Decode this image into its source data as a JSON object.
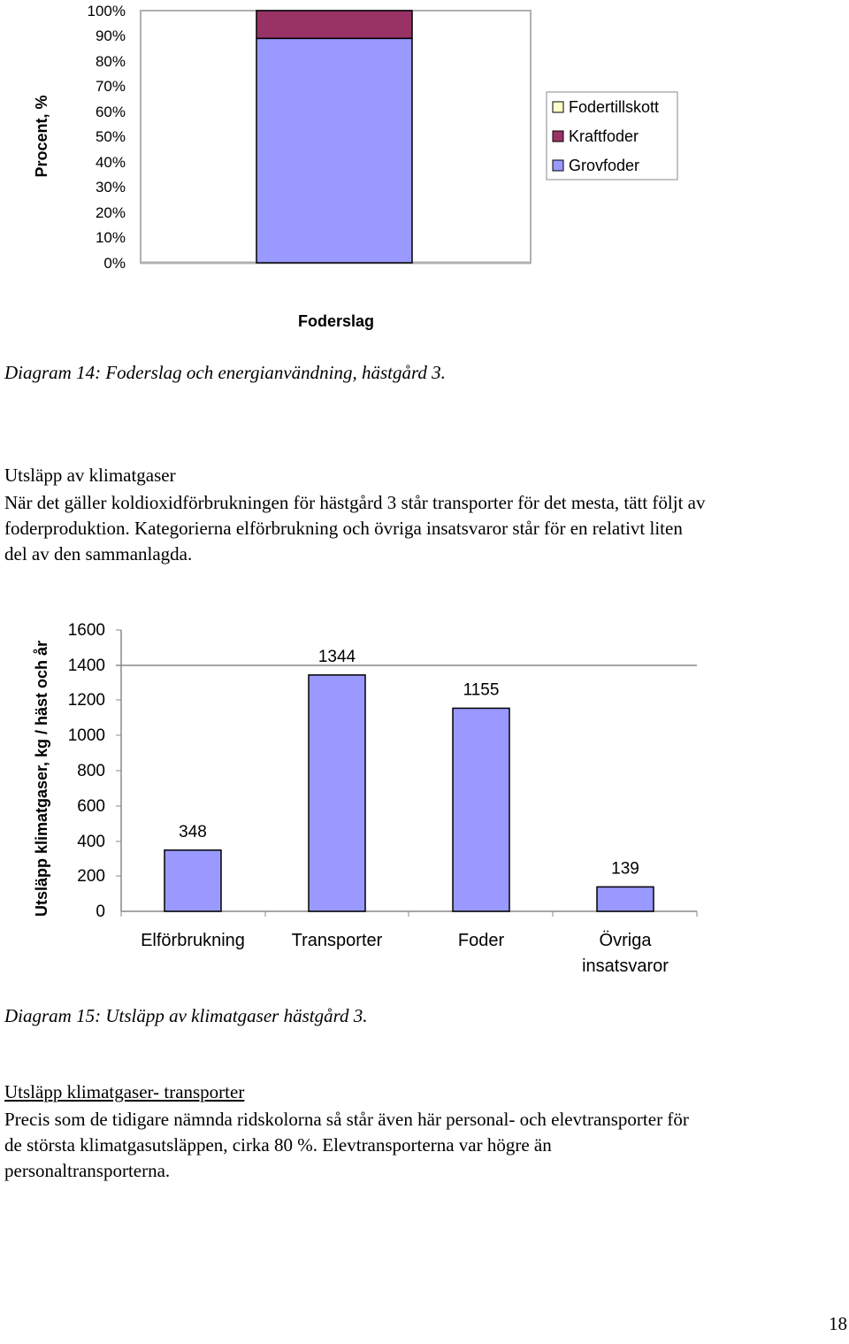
{
  "chart1": {
    "ylabel": "Procent, %",
    "xlabel": "Foderslag",
    "yticks": [
      "100%",
      "90%",
      "80%",
      "70%",
      "60%",
      "50%",
      "40%",
      "30%",
      "20%",
      "10%",
      "0%"
    ]
  },
  "caption1": "Diagram 14: Foderslag och energianvändning, hästgård 3.",
  "section1": {
    "title": "Utsläpp av klimatgaser",
    "lines": [
      "När det gäller koldioxidförbrukningen för hästgård 3 står transporter för det mesta, tätt följt av",
      "foderproduktion. Kategorierna elförbrukning och övriga insatsvaror står för en relativt liten",
      "del av den sammanlagda."
    ]
  },
  "chart2": {
    "ylabel": "Utsläpp klimatgaser, kg / häst och år",
    "yticks": [
      "1600",
      "1400",
      "1200",
      "1000",
      "800",
      "600",
      "400",
      "200",
      "0"
    ],
    "value_labels": [
      "348",
      "1344",
      "1155",
      "139"
    ],
    "category_labels": [
      "Elförbrukning",
      "Transporter",
      "Foder",
      "Övriga",
      "insatsvaror"
    ]
  },
  "caption2": "Diagram 15: Utsläpp av klimatgaser hästgård 3.",
  "section2": {
    "title": "Utsläpp klimatgaser- transporter",
    "lines": [
      "Precis som de tidigare nämnda ridskolorna så står även här personal- och elevtransporter för",
      "de största klimatgasutsläppen, cirka 80 %. Elevtransporterna var högre än",
      "personaltransporterna."
    ]
  },
  "page_number": "18",
  "chart_data": [
    {
      "type": "bar",
      "stacked": true,
      "ylabel": "Procent, %",
      "xlabel": "Foderslag",
      "ylim": [
        0,
        100
      ],
      "categories": [
        ""
      ],
      "series": [
        {
          "name": "Fodertillskott",
          "values": [
            0
          ],
          "color": "#ffffcc"
        },
        {
          "name": "Kraftfoder",
          "values": [
            11
          ],
          "color": "#993366"
        },
        {
          "name": "Grovfoder",
          "values": [
            89
          ],
          "color": "#9999ff"
        }
      ],
      "legend": "right"
    },
    {
      "type": "bar",
      "ylabel": "Utsläpp klimatgaser, kg / häst och år",
      "ylim": [
        0,
        1600
      ],
      "categories": [
        "Elförbrukning",
        "Transporter",
        "Foder",
        "Övriga insatsvaror"
      ],
      "values": [
        348,
        1344,
        1155,
        139
      ],
      "color": "#9999ff"
    }
  ]
}
